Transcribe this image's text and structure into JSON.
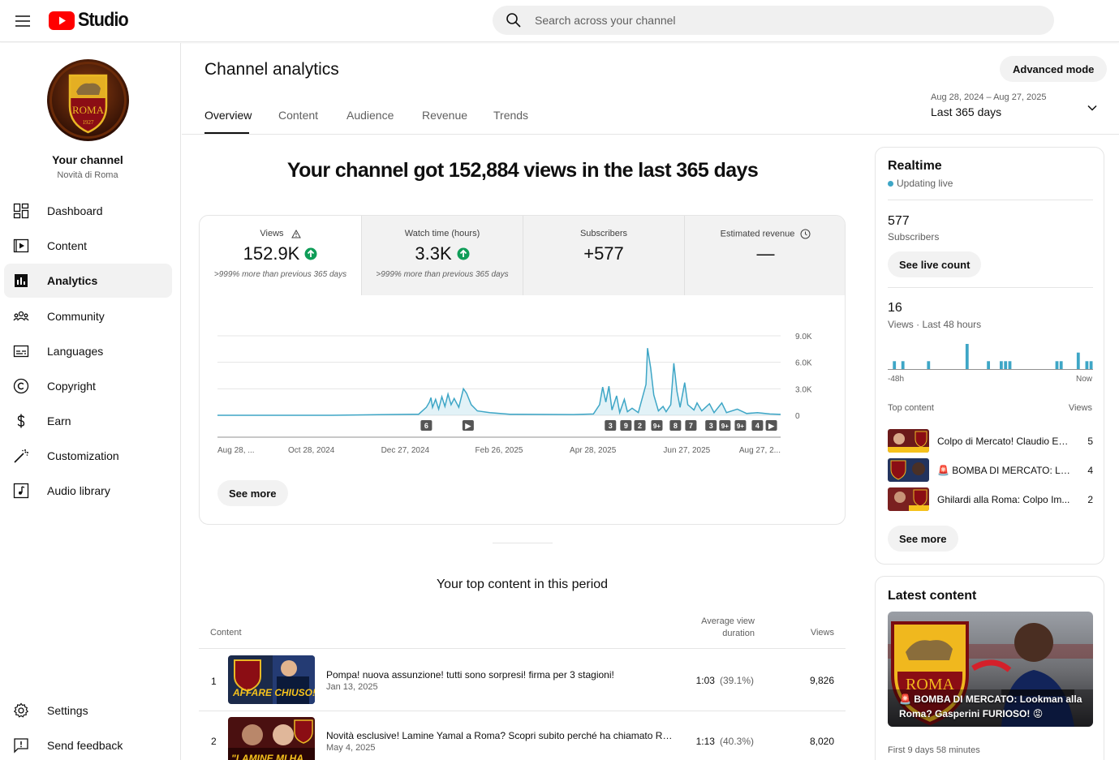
{
  "app": {
    "logo_text": "Studio"
  },
  "search": {
    "placeholder": "Search across your channel"
  },
  "sidebar": {
    "channel_name": "Your channel",
    "channel_sub": "Novità di Roma",
    "avatar_text": "ROMA",
    "avatar_year": "1927",
    "items": [
      {
        "label": "Dashboard",
        "icon": "dashboard-icon"
      },
      {
        "label": "Content",
        "icon": "content-icon"
      },
      {
        "label": "Analytics",
        "icon": "analytics-icon",
        "active": true
      },
      {
        "label": "Community",
        "icon": "community-icon"
      },
      {
        "label": "Languages",
        "icon": "languages-icon"
      },
      {
        "label": "Copyright",
        "icon": "copyright-icon"
      },
      {
        "label": "Earn",
        "icon": "earn-icon"
      },
      {
        "label": "Customization",
        "icon": "customization-icon"
      },
      {
        "label": "Audio library",
        "icon": "audio-library-icon"
      }
    ],
    "bottom": [
      {
        "label": "Settings",
        "icon": "settings-icon"
      },
      {
        "label": "Send feedback",
        "icon": "feedback-icon"
      }
    ]
  },
  "header": {
    "title": "Channel analytics",
    "advanced_mode": "Advanced mode",
    "tabs": [
      "Overview",
      "Content",
      "Audience",
      "Revenue",
      "Trends"
    ],
    "date_range": "Aug 28, 2024 – Aug 27, 2025",
    "date_label": "Last 365 days"
  },
  "headline": "Your channel got 152,884 views in the last 365 days",
  "metrics": [
    {
      "label": "Views",
      "value": "152.9K",
      "note": ">999% more than previous 365 days"
    },
    {
      "label": "Watch time (hours)",
      "value": "3.3K",
      "note": ">999% more than previous 365 days"
    },
    {
      "label": "Subscribers",
      "value": "+577"
    },
    {
      "label": "Estimated revenue",
      "value": "—"
    }
  ],
  "chart_data": {
    "type": "area",
    "series_color": "#3ea6c6",
    "yticks": [
      "9.0K",
      "6.0K",
      "3.0K",
      "0"
    ],
    "ylim": [
      0,
      9000
    ],
    "xticks": [
      "Aug 28, ...",
      "Oct 28, 2024",
      "Dec 27, 2024",
      "Feb 26, 2025",
      "Apr 28, 2025",
      "Jun 27, 2025",
      "Aug 27, 2..."
    ],
    "x_range": [
      "2024-08-28",
      "2025-08-27"
    ],
    "points": [
      [
        "2024-08-28",
        0
      ],
      [
        "2024-10-15",
        0
      ],
      [
        "2024-11-10",
        0
      ],
      [
        "2024-12-15",
        80
      ],
      [
        "2025-01-05",
        120
      ],
      [
        "2025-01-10",
        900
      ],
      [
        "2025-01-12",
        1500
      ],
      [
        "2025-01-13",
        2000
      ],
      [
        "2025-01-14",
        900
      ],
      [
        "2025-01-16",
        1800
      ],
      [
        "2025-01-18",
        700
      ],
      [
        "2025-01-20",
        2100
      ],
      [
        "2025-01-22",
        1000
      ],
      [
        "2025-01-24",
        2400
      ],
      [
        "2025-01-26",
        1200
      ],
      [
        "2025-01-28",
        1900
      ],
      [
        "2025-01-31",
        900
      ],
      [
        "2025-02-03",
        3000
      ],
      [
        "2025-02-05",
        2500
      ],
      [
        "2025-02-08",
        1200
      ],
      [
        "2025-02-12",
        500
      ],
      [
        "2025-02-20",
        300
      ],
      [
        "2025-03-05",
        120
      ],
      [
        "2025-04-15",
        80
      ],
      [
        "2025-04-28",
        150
      ],
      [
        "2025-05-02",
        1200
      ],
      [
        "2025-05-04",
        3200
      ],
      [
        "2025-05-06",
        1500
      ],
      [
        "2025-05-08",
        3300
      ],
      [
        "2025-05-10",
        600
      ],
      [
        "2025-05-13",
        2200
      ],
      [
        "2025-05-15",
        300
      ],
      [
        "2025-05-18",
        1800
      ],
      [
        "2025-05-20",
        400
      ],
      [
        "2025-05-23",
        800
      ],
      [
        "2025-05-27",
        300
      ],
      [
        "2025-06-01",
        3500
      ],
      [
        "2025-06-02",
        7600
      ],
      [
        "2025-06-04",
        5400
      ],
      [
        "2025-06-06",
        2300
      ],
      [
        "2025-06-09",
        500
      ],
      [
        "2025-06-12",
        1000
      ],
      [
        "2025-06-14",
        400
      ],
      [
        "2025-06-17",
        1200
      ],
      [
        "2025-06-19",
        5900
      ],
      [
        "2025-06-21",
        2700
      ],
      [
        "2025-06-23",
        900
      ],
      [
        "2025-06-26",
        3700
      ],
      [
        "2025-06-28",
        1200
      ],
      [
        "2025-07-02",
        600
      ],
      [
        "2025-07-04",
        1400
      ],
      [
        "2025-07-07",
        500
      ],
      [
        "2025-07-12",
        1300
      ],
      [
        "2025-07-15",
        300
      ],
      [
        "2025-07-20",
        1400
      ],
      [
        "2025-07-23",
        300
      ],
      [
        "2025-07-30",
        700
      ],
      [
        "2025-08-05",
        200
      ],
      [
        "2025-08-12",
        300
      ],
      [
        "2025-08-20",
        150
      ],
      [
        "2025-08-27",
        100
      ]
    ],
    "markers": [
      {
        "date": "2025-01-10",
        "label": "6"
      },
      {
        "date": "2025-02-06",
        "label": "▶"
      },
      {
        "date": "2025-05-09",
        "label": "3"
      },
      {
        "date": "2025-05-19",
        "label": "9"
      },
      {
        "date": "2025-05-28",
        "label": "2"
      },
      {
        "date": "2025-06-08",
        "label": "9+"
      },
      {
        "date": "2025-06-20",
        "label": "8"
      },
      {
        "date": "2025-06-30",
        "label": "7"
      },
      {
        "date": "2025-07-13",
        "label": "3"
      },
      {
        "date": "2025-07-22",
        "label": "9+"
      },
      {
        "date": "2025-08-01",
        "label": "9+"
      },
      {
        "date": "2025-08-12",
        "label": "4"
      },
      {
        "date": "2025-08-21",
        "label": "▶"
      }
    ]
  },
  "see_more": "See more",
  "top_content": {
    "title": "Your top content in this period",
    "col_content": "Content",
    "col_avd": "Average view duration",
    "col_views": "Views",
    "rows": [
      {
        "rank": "1",
        "title": "Pompa! nuova assunzione! tutti sono sorpresi! firma per 3 stagioni!",
        "date": "Jan 13, 2025",
        "avd": "1:03",
        "pct": "(39.1%)",
        "views": "9,826",
        "thumb_text": "AFFARE CHIUSO!"
      },
      {
        "rank": "2",
        "title": "Novità esclusive! Lamine Yamal a Roma? Scopri subito perché ha chiamato Ranieri!",
        "date": "May 4, 2025",
        "avd": "1:13",
        "pct": "(40.3%)",
        "views": "8,020",
        "thumb_text": "\"LAMINE MI HA"
      }
    ]
  },
  "realtime": {
    "title": "Realtime",
    "status": "Updating live",
    "subs_value": "577",
    "subs_label": "Subscribers",
    "live_button": "See live count",
    "views_value": "16",
    "views_label": "Views · Last 48 hours",
    "axis_left": "-48h",
    "axis_right": "Now",
    "mini_bars": [
      0,
      1,
      0,
      1,
      0,
      0,
      0,
      0,
      0,
      1,
      0,
      0,
      0,
      0,
      0,
      0,
      0,
      0,
      3,
      0,
      0,
      0,
      0,
      1,
      0,
      0,
      1,
      1,
      1,
      0,
      0,
      0,
      0,
      0,
      0,
      0,
      0,
      0,
      0,
      1,
      1,
      0,
      0,
      0,
      2,
      0,
      1,
      1
    ],
    "top_label": "Top content",
    "views_col": "Views",
    "items": [
      {
        "title": "Colpo di Mercato! Claudio Ec...",
        "views": "5"
      },
      {
        "title": "🚨 BOMBA DI MERCATO: Loo...",
        "views": "4"
      },
      {
        "title": "Ghilardi alla Roma: Colpo Im...",
        "views": "2"
      }
    ],
    "see_more": "See more"
  },
  "latest": {
    "title": "Latest content",
    "caption": "🚨 BOMBA DI MERCATO: Lookman alla Roma? Gasperini FURIOSO! 😡",
    "meta": "First 9 days 58 minutes",
    "thumb_text": "ROMA"
  },
  "colors": {
    "accent": "#3ea6c6",
    "youtube_red": "#ff0000",
    "up_green": "#0f9d58"
  }
}
